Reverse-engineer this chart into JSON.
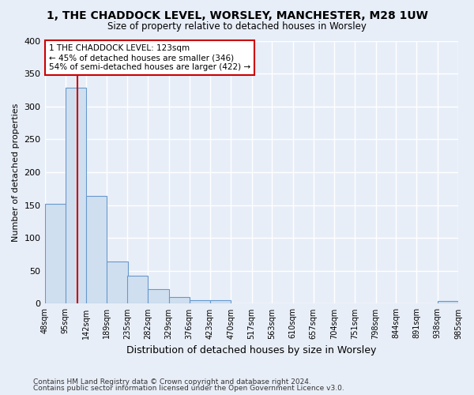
{
  "title": "1, THE CHADDOCK LEVEL, WORSLEY, MANCHESTER, M28 1UW",
  "subtitle": "Size of property relative to detached houses in Worsley",
  "xlabel": "Distribution of detached houses by size in Worsley",
  "ylabel": "Number of detached properties",
  "footer1": "Contains HM Land Registry data © Crown copyright and database right 2024.",
  "footer2": "Contains public sector information licensed under the Open Government Licence v3.0.",
  "bin_edges": [
    48,
    95,
    142,
    189,
    235,
    282,
    329,
    376,
    423,
    470,
    517,
    563,
    610,
    657,
    704,
    751,
    798,
    844,
    891,
    938,
    985
  ],
  "bar_heights": [
    152,
    328,
    164,
    64,
    43,
    22,
    10,
    5,
    5,
    0,
    0,
    0,
    0,
    0,
    0,
    0,
    0,
    0,
    0,
    4
  ],
  "property_size": 123,
  "bar_color": "#d0dff0",
  "bar_edge_color": "#6699cc",
  "vline_color": "#cc0000",
  "annotation_line1": "1 THE CHADDOCK LEVEL: 123sqm",
  "annotation_line2": "← 45% of detached houses are smaller (346)",
  "annotation_line3": "54% of semi-detached houses are larger (422) →",
  "annotation_box_color": "#ffffff",
  "annotation_box_edge_color": "#cc0000",
  "bg_color": "#e8eef8",
  "plot_bg_color": "#e8eef8",
  "grid_color": "#ffffff",
  "ylim": [
    0,
    400
  ],
  "yticks": [
    0,
    50,
    100,
    150,
    200,
    250,
    300,
    350,
    400
  ]
}
